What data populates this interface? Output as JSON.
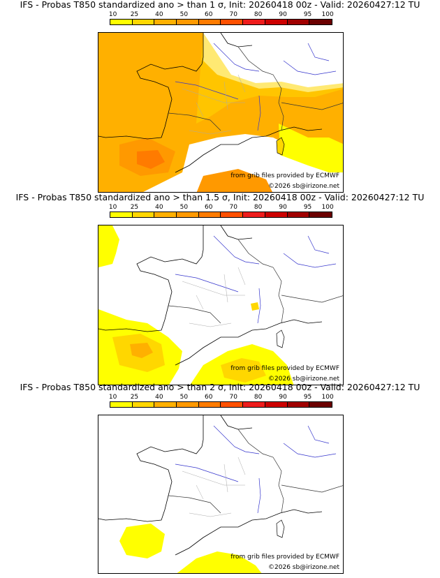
{
  "legend": {
    "ticks": [
      "10",
      "25",
      "40",
      "50",
      "60",
      "70",
      "80",
      "90",
      "95",
      "100"
    ],
    "colors": [
      "#ffff00",
      "#ffd700",
      "#ffb000",
      "#ff9900",
      "#ff7b00",
      "#ff5000",
      "#ee1c1c",
      "#cc0000",
      "#a00000",
      "#6b0000"
    ]
  },
  "panels": [
    {
      "title": "IFS - Probas T850  standardized ano > than 1 σ, Init: 20260418 00z - Valid: 20260427:12 TU",
      "credit_source": "from grib files provided by ECMWF",
      "credit_copyright": "©2026 sb@irizone.net"
    },
    {
      "title": "IFS - Probas T850  standardized ano > than 1.5 σ, Init: 20260418 00z - Valid: 20260427:12 TU",
      "credit_source": "from grib files provided by ECMWF",
      "credit_copyright": "©2026 sb@irizone.net"
    },
    {
      "title": "IFS - Probas T850  standardized ano > than 2 σ, Init: 20260418 00z - Valid: 20260427:12 TU",
      "credit_source": "from grib files provided by ECMWF",
      "credit_copyright": "©2026 sb@irizone.net"
    }
  ]
}
